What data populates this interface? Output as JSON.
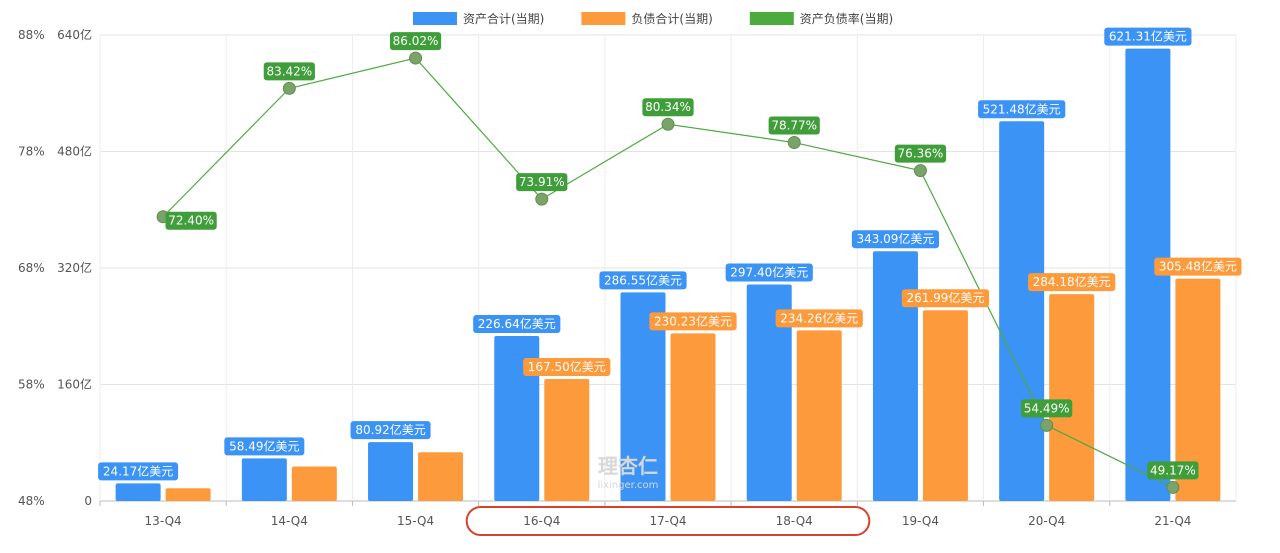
{
  "chart_data": {
    "type": "bar",
    "categories": [
      "13-Q4",
      "14-Q4",
      "15-Q4",
      "16-Q4",
      "17-Q4",
      "18-Q4",
      "19-Q4",
      "20-Q4",
      "21-Q4"
    ],
    "series": [
      {
        "name": "资产合计(当期)",
        "type": "bar",
        "axis": "left",
        "color": "#3a93f5",
        "values": [
          24.17,
          58.49,
          80.92,
          226.64,
          286.55,
          297.4,
          343.09,
          521.48,
          621.31
        ],
        "labels": [
          "24.17亿美元",
          "58.49亿美元",
          "80.92亿美元",
          "226.64亿美元",
          "286.55亿美元",
          "297.40亿美元",
          "343.09亿美元",
          "521.48亿美元",
          "621.31亿美元"
        ]
      },
      {
        "name": "负债合计(当期)",
        "type": "bar",
        "axis": "left",
        "color": "#fd9a3c",
        "values": [
          17.5,
          47.3,
          67.0,
          167.5,
          230.23,
          234.26,
          261.99,
          284.18,
          305.48
        ],
        "labels": [
          "",
          "",
          "",
          "167.50亿美元",
          "230.23亿美元",
          "234.26亿美元",
          "261.99亿美元",
          "284.18亿美元",
          "305.48亿美元"
        ]
      },
      {
        "name": "资产负债率(当期)",
        "type": "line",
        "axis": "right",
        "color": "#4caa3e",
        "values": [
          72.4,
          83.42,
          86.02,
          73.91,
          80.34,
          78.77,
          76.36,
          54.49,
          49.17
        ],
        "labels": [
          "72.40%",
          "83.42%",
          "86.02%",
          "73.91%",
          "80.34%",
          "78.77%",
          "76.36%",
          "54.49%",
          "49.17%"
        ]
      }
    ],
    "left_axis": {
      "ticks": [
        0,
        160,
        320,
        480,
        640
      ],
      "tick_labels": [
        "0",
        "160亿",
        "320亿",
        "480亿",
        "640亿"
      ],
      "ylim": [
        0,
        640
      ]
    },
    "right_axis": {
      "ticks": [
        48,
        58,
        68,
        78,
        88
      ],
      "tick_labels": [
        "48%",
        "58%",
        "68%",
        "78%",
        "88%"
      ],
      "ylim": [
        48,
        88
      ]
    },
    "highlight_categories": [
      "16-Q4",
      "17-Q4",
      "18-Q4"
    ],
    "highlight_color": "#d9412b",
    "watermark": {
      "text": "理杏仁",
      "subtext": "lixinger.com"
    },
    "legend_position": "top",
    "grid": true,
    "title": "",
    "xlabel": "",
    "ylabel": ""
  }
}
